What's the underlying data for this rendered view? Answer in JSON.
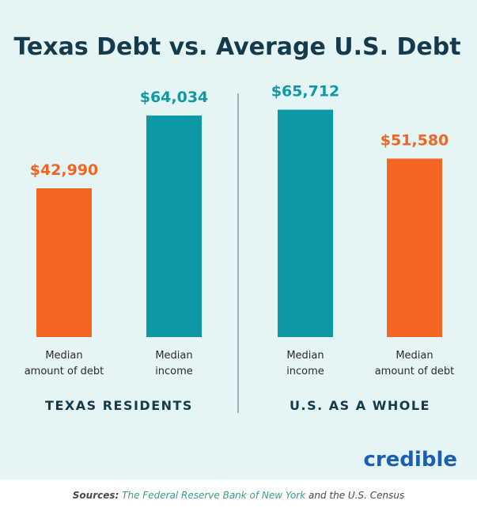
{
  "chart_data": {
    "type": "bar",
    "title": "Texas Debt vs. Average U.S. Debt",
    "ylim": [
      0,
      75000
    ],
    "panels": [
      {
        "label": "TEXAS RESIDENTS",
        "bars": [
          {
            "category": "Median amount of debt",
            "category_lines": [
              "Median",
              "amount of debt"
            ],
            "value": 42990,
            "value_label": "$42,990",
            "color": "#f26522"
          },
          {
            "category": "Median income",
            "category_lines": [
              "Median",
              "income"
            ],
            "value": 64034,
            "value_label": "$64,034",
            "color": "#0d9aa5"
          }
        ]
      },
      {
        "label": "U.S. AS A WHOLE",
        "bars": [
          {
            "category": "Median income",
            "category_lines": [
              "Median",
              "income"
            ],
            "value": 65712,
            "value_label": "$65,712",
            "color": "#0d9aa5"
          },
          {
            "category": "Median amount of debt",
            "category_lines": [
              "Median",
              "amount of debt"
            ],
            "value": 51580,
            "value_label": "$51,580",
            "color": "#f26522"
          }
        ]
      }
    ]
  },
  "brand": {
    "logo_text": "credible",
    "color": "#1a5fb4"
  },
  "footer": {
    "sources_label": "Sources:",
    "source_1": "The Federal Reserve Bank of New York",
    "connector": "and the U.S. Census"
  },
  "colors": {
    "background": "#e5f4f5",
    "teal": "#0d9aa5",
    "orange": "#f26522",
    "title": "#133a4d",
    "divider": "#8a9aa0"
  }
}
